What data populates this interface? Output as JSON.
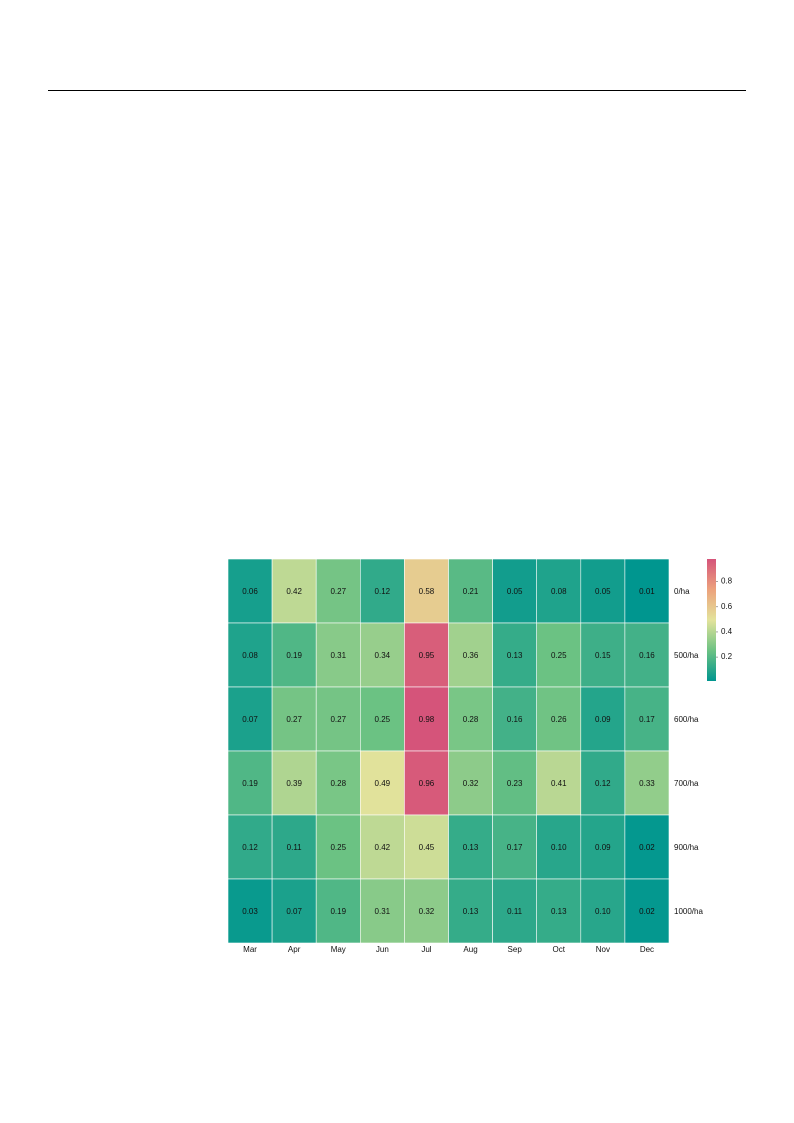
{
  "chart_data": {
    "type": "heatmap",
    "categories": [
      "Mar",
      "Apr",
      "May",
      "Jun",
      "Jul",
      "Aug",
      "Sep",
      "Oct",
      "Nov",
      "Dec"
    ],
    "rows": [
      "0/ha",
      "500/ha",
      "600/ha",
      "700/ha",
      "900/ha",
      "1000/ha"
    ],
    "values": [
      [
        0.06,
        0.42,
        0.27,
        0.12,
        0.58,
        0.21,
        0.05,
        0.08,
        0.05,
        0.01
      ],
      [
        0.08,
        0.19,
        0.31,
        0.34,
        0.95,
        0.36,
        0.13,
        0.25,
        0.15,
        0.16
      ],
      [
        0.07,
        0.27,
        0.27,
        0.25,
        0.98,
        0.28,
        0.16,
        0.26,
        0.09,
        0.17
      ],
      [
        0.19,
        0.39,
        0.28,
        0.49,
        0.96,
        0.32,
        0.23,
        0.41,
        0.12,
        0.33
      ],
      [
        0.12,
        0.11,
        0.25,
        0.42,
        0.45,
        0.13,
        0.17,
        0.1,
        0.09,
        0.02
      ],
      [
        0.03,
        0.07,
        0.19,
        0.31,
        0.32,
        0.13,
        0.11,
        0.13,
        0.1,
        0.02
      ]
    ],
    "value_labels": [
      [
        "0.06",
        "0.42",
        "0.27",
        "0.12",
        "0.58",
        "0.21",
        "0.05",
        "0.08",
        "0.05",
        "0.01"
      ],
      [
        "0.08",
        "0.19",
        "0.31",
        "0.34",
        "0.95",
        "0.36",
        "0.13",
        "0.25",
        "0.15",
        "0.16"
      ],
      [
        "0.07",
        "0.27",
        "0.27",
        "0.25",
        "0.98",
        "0.28",
        "0.16",
        "0.26",
        "0.09",
        "0.17"
      ],
      [
        "0.19",
        "0.39",
        "0.28",
        "0.49",
        "0.96",
        "0.32",
        "0.23",
        "0.41",
        "0.12",
        "0.33"
      ],
      [
        "0.12",
        "0.11",
        "0.25",
        "0.42",
        "0.45",
        "0.13",
        "0.17",
        "0.10",
        "0.09",
        "0.02"
      ],
      [
        "0.03",
        "0.07",
        "0.19",
        "0.31",
        "0.32",
        "0.13",
        "0.11",
        "0.13",
        "0.10",
        "0.02"
      ]
    ],
    "zlim": [
      0.01,
      0.98
    ],
    "zticks": [
      0.2,
      0.4,
      0.6,
      0.8
    ],
    "colors": [
      "#00968f",
      "#6cc283",
      "#e3e39b",
      "#eca27c",
      "#d5547a"
    ]
  }
}
